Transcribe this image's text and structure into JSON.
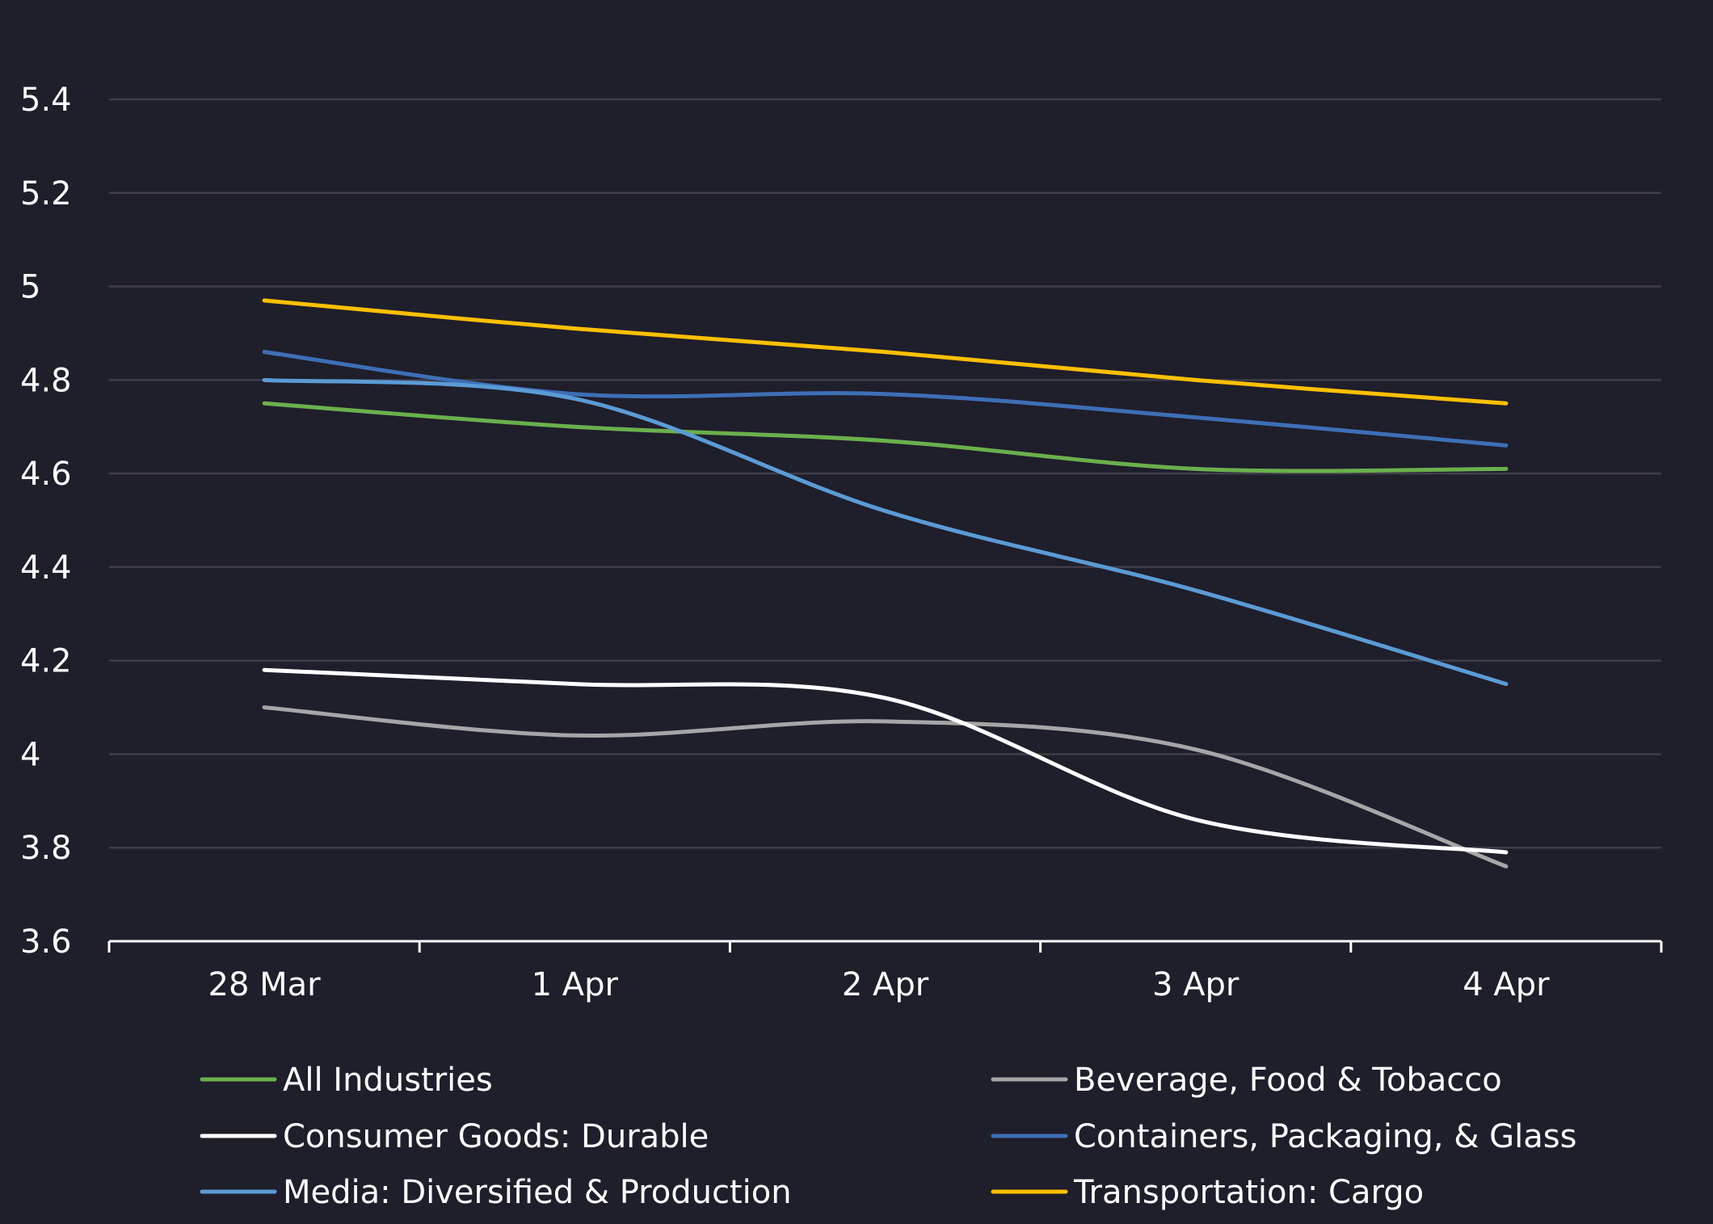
{
  "chart_data": {
    "type": "line",
    "title": "",
    "xlabel": "",
    "ylabel": "",
    "categories": [
      "28 Mar",
      "1 Apr",
      "2 Apr",
      "3 Apr",
      "4 Apr"
    ],
    "ylim": [
      3.6,
      5.4
    ],
    "yticks": [
      3.6,
      3.8,
      4,
      4.2,
      4.4,
      4.6,
      4.8,
      5,
      5.2,
      5.4
    ],
    "ytick_labels": [
      "3.6",
      "3.8",
      "4",
      "4.2",
      "4.4",
      "4.6",
      "4.8",
      "5",
      "5.2",
      "5.4"
    ],
    "grid": true,
    "legend_position": "bottom",
    "smooth": true,
    "background": "#1f1e2b",
    "grid_color": "#3e3d48",
    "axis_color": "#ffffff",
    "series": [
      {
        "name": "All Industries",
        "color": "#6ab04c",
        "values": [
          4.75,
          4.7,
          4.67,
          4.61,
          4.61
        ]
      },
      {
        "name": "Beverage, Food & Tobacco",
        "color": "#a6a6a6",
        "values": [
          4.1,
          4.04,
          4.07,
          4.01,
          3.76
        ]
      },
      {
        "name": "Consumer Goods: Durable",
        "color": "#ffffff",
        "values": [
          4.18,
          4.15,
          4.12,
          3.86,
          3.79
        ]
      },
      {
        "name": "Containers, Packaging, & Glass",
        "color": "#3d6fb6",
        "values": [
          4.86,
          4.77,
          4.77,
          4.72,
          4.66
        ]
      },
      {
        "name": "Media: Diversified & Production",
        "color": "#5b9bd5",
        "values": [
          4.8,
          4.76,
          4.52,
          4.35,
          4.15
        ]
      },
      {
        "name": "Transportation: Cargo",
        "color": "#ffc000",
        "values": [
          4.97,
          4.91,
          4.86,
          4.8,
          4.75
        ]
      }
    ]
  }
}
